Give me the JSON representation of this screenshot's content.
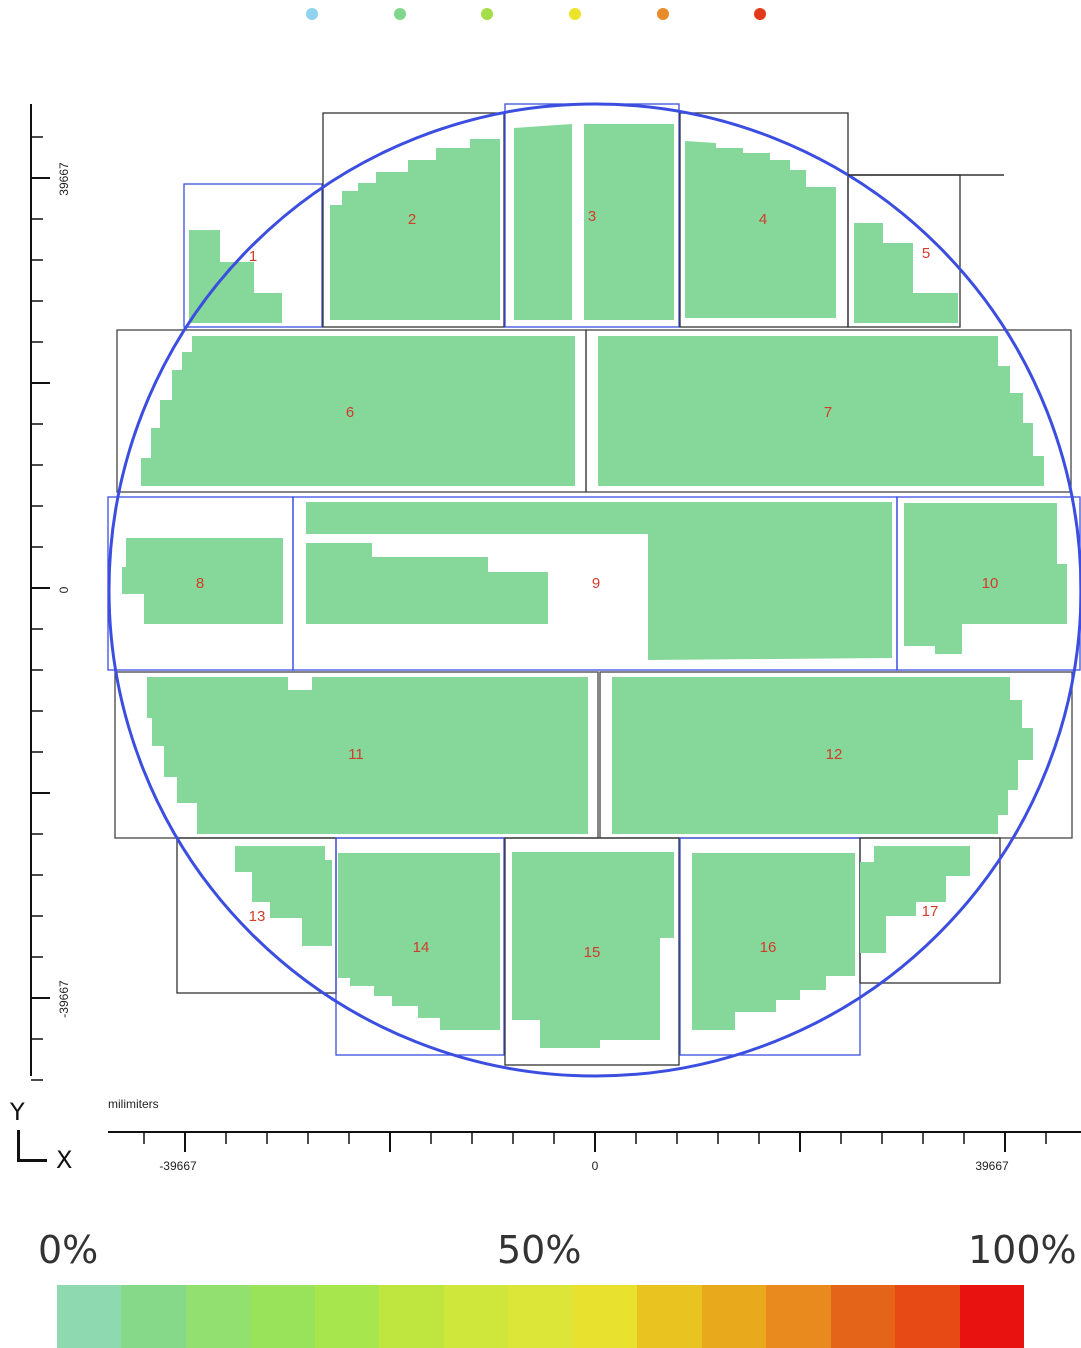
{
  "top_dot_colors": [
    "#8fd3ef",
    "#7fd68c",
    "#a4dd4a",
    "#ece42a",
    "#e88a2a",
    "#e03a18"
  ],
  "chart_data": {
    "type": "heatmap",
    "title": "",
    "unit_label": "milimiters",
    "xlabel": "X",
    "ylabel": "Y",
    "xlim": [
      -39667,
      39667
    ],
    "ylim": [
      -39667,
      39667
    ],
    "x_ticks": [
      "-39667",
      "0",
      "39667"
    ],
    "y_ticks": [
      "39667",
      "0",
      "-39667"
    ],
    "fields": [
      {
        "id": "1"
      },
      {
        "id": "2"
      },
      {
        "id": "3"
      },
      {
        "id": "4"
      },
      {
        "id": "5"
      },
      {
        "id": "6"
      },
      {
        "id": "7"
      },
      {
        "id": "8"
      },
      {
        "id": "9"
      },
      {
        "id": "10"
      },
      {
        "id": "11"
      },
      {
        "id": "12"
      },
      {
        "id": "13"
      },
      {
        "id": "14"
      },
      {
        "id": "15"
      },
      {
        "id": "16"
      },
      {
        "id": "17"
      }
    ],
    "legend": {
      "labels": [
        "0%",
        "50%",
        "100%"
      ],
      "colors": [
        "#8fd9b0",
        "#87d98a",
        "#91e070",
        "#99e35a",
        "#a8e64e",
        "#bfe63e",
        "#cfe63a",
        "#dce638",
        "#e8e22e",
        "#e9c320",
        "#e8a91c",
        "#e88a1e",
        "#e4641a",
        "#e84a16",
        "#e81210"
      ]
    },
    "wafer_fill": "#86d79a",
    "wafer_outline_color": "#3b4ee0"
  }
}
